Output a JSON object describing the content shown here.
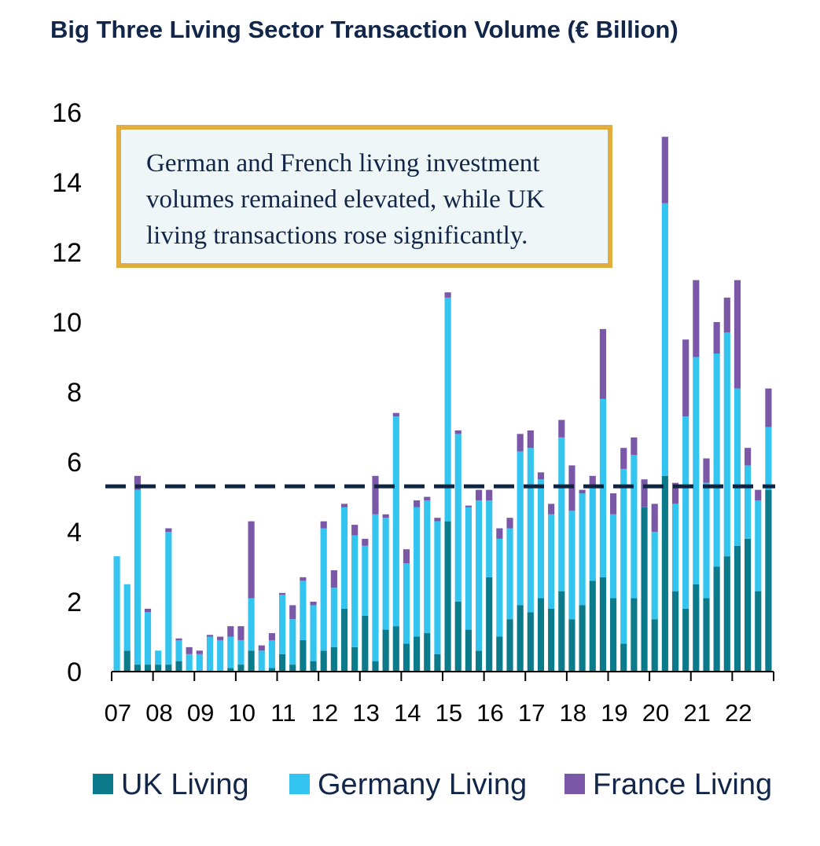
{
  "chart_data": {
    "type": "bar",
    "stacked": true,
    "title": "Big Three Living Sector Transaction Volume (€ Billion)",
    "xlabel": "",
    "ylabel": "",
    "ylim": [
      0,
      16
    ],
    "yticks": [
      0,
      2,
      4,
      6,
      8,
      10,
      12,
      14,
      16
    ],
    "x_tick_labels": [
      "07",
      "08",
      "09",
      "10",
      "11",
      "12",
      "13",
      "14",
      "15",
      "16",
      "17",
      "18",
      "19",
      "20",
      "21",
      "22"
    ],
    "periods_per_label": 4,
    "reference_line": {
      "value": 5.3,
      "style": "dashed",
      "color": "#0f2440"
    },
    "annotation": {
      "lines": [
        "German and French living investment",
        "volumes remained elevated, while UK",
        "living transactions rose significantly."
      ]
    },
    "colors": {
      "UK Living": "#0b7a8a",
      "Germany Living": "#33c4ef",
      "France Living": "#7b57a8"
    },
    "series": [
      {
        "name": "UK Living",
        "values": [
          0.0,
          0.6,
          0.2,
          0.2,
          0.2,
          0.2,
          0.3,
          0.0,
          0.0,
          0.0,
          0.0,
          0.1,
          0.2,
          0.6,
          0.0,
          0.1,
          0.5,
          0.2,
          0.9,
          0.3,
          0.6,
          0.7,
          1.8,
          0.7,
          1.6,
          0.3,
          1.2,
          1.3,
          0.8,
          1.0,
          1.1,
          0.5,
          4.3,
          2.0,
          1.2,
          0.6,
          2.7,
          1.0,
          1.5,
          1.9,
          1.7,
          2.1,
          1.8,
          2.3,
          1.5,
          1.9,
          2.6,
          2.7,
          2.1,
          0.8,
          2.1,
          4.7,
          1.5,
          5.6,
          2.3,
          1.8,
          2.5,
          2.1,
          3.0,
          3.3,
          3.6,
          3.8,
          2.3,
          5.2
        ]
      },
      {
        "name": "Germany Living",
        "values": [
          3.3,
          1.9,
          5.0,
          1.5,
          0.4,
          3.8,
          0.6,
          0.5,
          0.5,
          1.0,
          0.9,
          0.9,
          0.7,
          1.5,
          0.6,
          0.8,
          1.7,
          1.3,
          1.7,
          1.6,
          3.5,
          1.7,
          2.9,
          3.2,
          2.0,
          4.2,
          3.2,
          6.0,
          2.3,
          3.7,
          3.8,
          3.8,
          6.4,
          4.8,
          3.5,
          4.3,
          2.2,
          2.8,
          2.6,
          4.4,
          4.7,
          3.4,
          2.7,
          4.4,
          3.1,
          3.2,
          2.7,
          5.1,
          2.4,
          5.0,
          4.1,
          0.0,
          2.5,
          7.8,
          2.5,
          5.5,
          6.5,
          3.3,
          6.1,
          6.4,
          4.5,
          2.1,
          2.6,
          1.8
        ]
      },
      {
        "name": "France Living",
        "values": [
          0.0,
          0.0,
          0.4,
          0.1,
          0.0,
          0.1,
          0.05,
          0.2,
          0.1,
          0.05,
          0.1,
          0.3,
          0.4,
          2.2,
          0.15,
          0.2,
          0.05,
          0.4,
          0.1,
          0.1,
          0.2,
          0.5,
          0.1,
          0.3,
          0.2,
          1.1,
          0.1,
          0.1,
          0.4,
          0.2,
          0.1,
          0.1,
          0.15,
          0.1,
          0.05,
          0.3,
          0.3,
          0.3,
          0.3,
          0.5,
          0.5,
          0.2,
          0.3,
          0.5,
          1.3,
          0.1,
          0.3,
          2.0,
          0.6,
          0.6,
          0.5,
          0.8,
          0.8,
          1.9,
          0.6,
          2.2,
          2.2,
          0.7,
          0.9,
          1.0,
          3.1,
          0.5,
          0.3,
          1.1
        ]
      }
    ]
  }
}
